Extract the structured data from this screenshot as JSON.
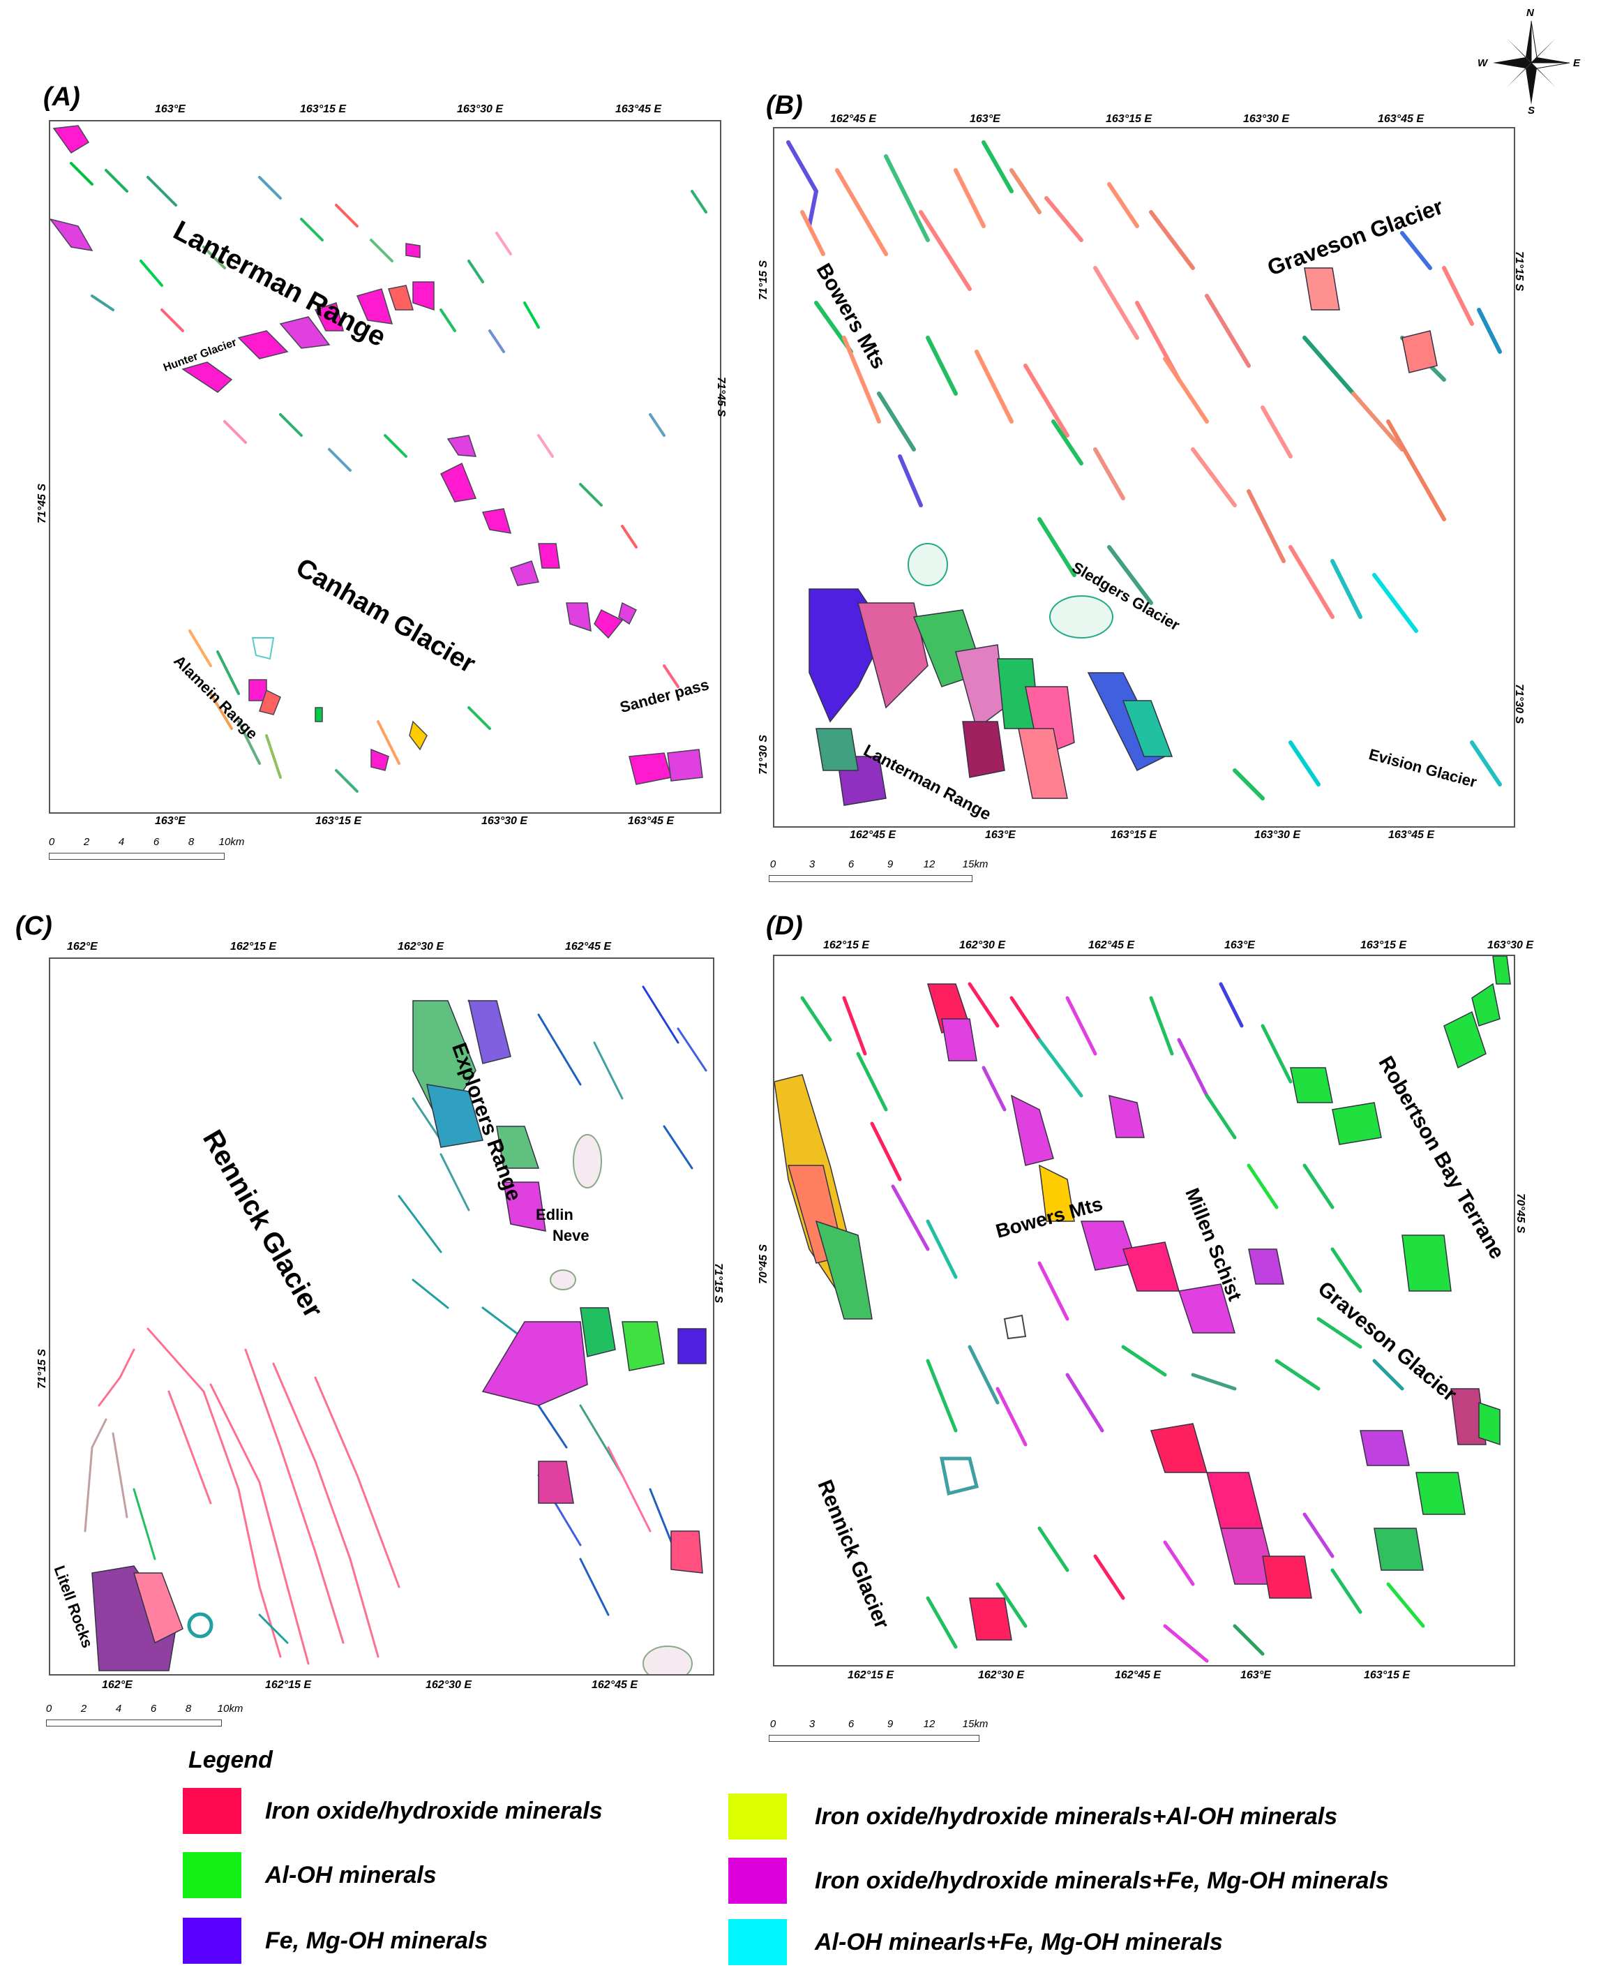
{
  "legend": {
    "title": "Legend",
    "items": [
      {
        "label": "Iron oxide/hydroxide minerals",
        "color": "#ff0a50"
      },
      {
        "label": "Al-OH minerals",
        "color": "#14f014"
      },
      {
        "label": "Fe, Mg-OH minerals",
        "color": "#5a00ff"
      },
      {
        "label": "Iron oxide/hydroxide minerals+Al-OH minerals",
        "color": "#dcff00"
      },
      {
        "label": "Iron oxide/hydroxide minerals+Fe, Mg-OH minerals",
        "color": "#dc00dc"
      },
      {
        "label": "Al-OH minearls+Fe, Mg-OH minerals",
        "color": "#00f5ff"
      }
    ]
  },
  "compass": {
    "n": "N",
    "s": "S",
    "e": "E",
    "w": "W"
  },
  "panels": {
    "A": {
      "label": "(A)",
      "top_coords": [
        "163°E",
        "163°15 E",
        "163°30 E",
        "163°45 E"
      ],
      "bottom_coords": [
        "163°E",
        "163°15 E",
        "163°30 E",
        "163°45 E"
      ],
      "left_coord": "71°45 S",
      "right_coord": "71°45 S",
      "places": [
        "Lanterman Range",
        "Hunter Glacier",
        "Canham Glacier",
        "Alamein Range",
        "Sander pass"
      ],
      "scale": [
        "0",
        "2",
        "4",
        "6",
        "8",
        "10km"
      ]
    },
    "B": {
      "label": "(B)",
      "top_coords": [
        "162°45 E",
        "163°E",
        "163°15 E",
        "163°30 E",
        "163°45 E"
      ],
      "bottom_coords": [
        "162°45 E",
        "163°E",
        "163°15 E",
        "163°30 E",
        "163°45 E"
      ],
      "left_coords": [
        "71°15 S",
        "71°30 S"
      ],
      "right_coords": [
        "71°15 S",
        "71°30 S"
      ],
      "places": [
        "Graveson Glacier",
        "Bowers Mts",
        "Sledgers Glacier",
        "Evision Glacier",
        "Lanterman Range"
      ],
      "scale": [
        "0",
        "3",
        "6",
        "9",
        "12",
        "15km"
      ]
    },
    "C": {
      "label": "(C)",
      "top_coords": [
        "162°E",
        "162°15 E",
        "162°30 E",
        "162°45 E"
      ],
      "bottom_coords": [
        "162°E",
        "162°15 E",
        "162°30 E",
        "162°45 E"
      ],
      "left_coord": "71°15 S",
      "right_coord": "71°15 S",
      "places": [
        "Rennick Glacier",
        "Explorers Range",
        "Edlin",
        "Neve",
        "Litell Rocks"
      ],
      "scale": [
        "0",
        "2",
        "4",
        "6",
        "8",
        "10km"
      ]
    },
    "D": {
      "label": "(D)",
      "top_coords": [
        "162°15 E",
        "162°30 E",
        "162°45 E",
        "163°E",
        "163°15 E",
        "163°30 E"
      ],
      "bottom_coords": [
        "162°15 E",
        "162°30 E",
        "162°45 E",
        "163°E",
        "163°15 E"
      ],
      "left_coord": "70°45 S",
      "right_coord": "70°45 S",
      "places": [
        "Robertson Bay Terrane",
        "Bowers Mts",
        "Millen Schist",
        "Graveson Glacier",
        "Rennick Glacier"
      ],
      "scale": [
        "0",
        "3",
        "6",
        "9",
        "12",
        "15km"
      ]
    }
  }
}
